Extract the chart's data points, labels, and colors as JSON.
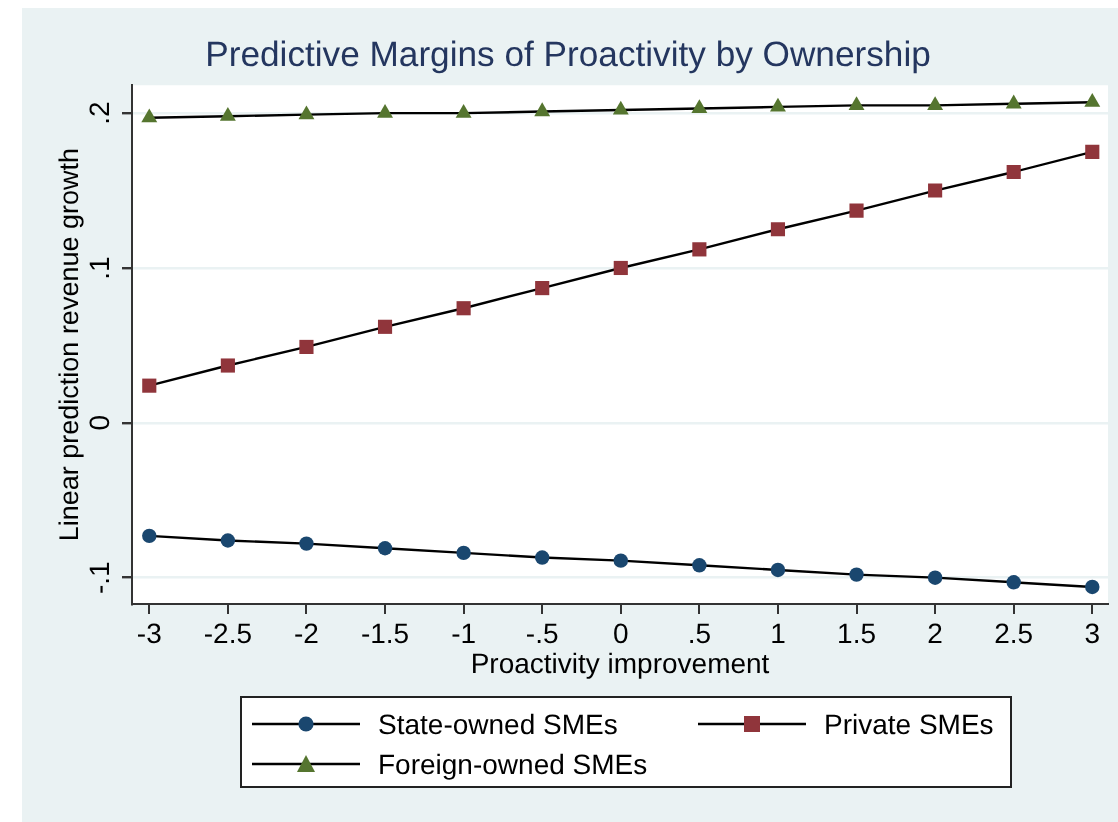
{
  "chart_data": {
    "type": "line",
    "title": "Predictive Margins of Proactivity by Ownership",
    "xlabel": "Proactivity improvement",
    "ylabel": "Linear prediction revenue growth",
    "x": [
      -3,
      -2.5,
      -2,
      -1.5,
      -1,
      -0.5,
      0,
      0.5,
      1,
      1.5,
      2,
      2.5,
      3
    ],
    "series": [
      {
        "name": "State-owned SMEs",
        "color": "#1a476f",
        "marker": "circle",
        "values": [
          -0.073,
          -0.076,
          -0.078,
          -0.081,
          -0.084,
          -0.087,
          -0.089,
          -0.092,
          -0.095,
          -0.098,
          -0.1,
          -0.103,
          -0.106
        ]
      },
      {
        "name": "Private SMEs",
        "color": "#90353b",
        "marker": "square",
        "values": [
          0.024,
          0.037,
          0.049,
          0.062,
          0.074,
          0.087,
          0.1,
          0.112,
          0.125,
          0.137,
          0.15,
          0.162,
          0.175
        ]
      },
      {
        "name": "Foreign-owned SMEs",
        "color": "#55752f",
        "marker": "triangle",
        "values": [
          0.197,
          0.198,
          0.199,
          0.2,
          0.2,
          0.201,
          0.202,
          0.203,
          0.204,
          0.205,
          0.205,
          0.206,
          0.207
        ]
      }
    ],
    "xlim": [
      -3.11,
      3.1
    ],
    "ylim": [
      -0.117,
      0.218
    ],
    "xticks": [
      -3,
      -2.5,
      -2,
      -1.5,
      -1,
      {
        "value": -0.5,
        "label": "-.5"
      },
      0,
      {
        "value": 0.5,
        "label": ".5"
      },
      1,
      1.5,
      2,
      2.5,
      3
    ],
    "yticks": [
      {
        "value": -0.1,
        "label": "-.1"
      },
      0,
      {
        "value": 0.1,
        "label": ".1"
      },
      {
        "value": 0.2,
        "label": ".2"
      }
    ],
    "grid": "y",
    "legend": "bottom",
    "line_style": "solid"
  }
}
